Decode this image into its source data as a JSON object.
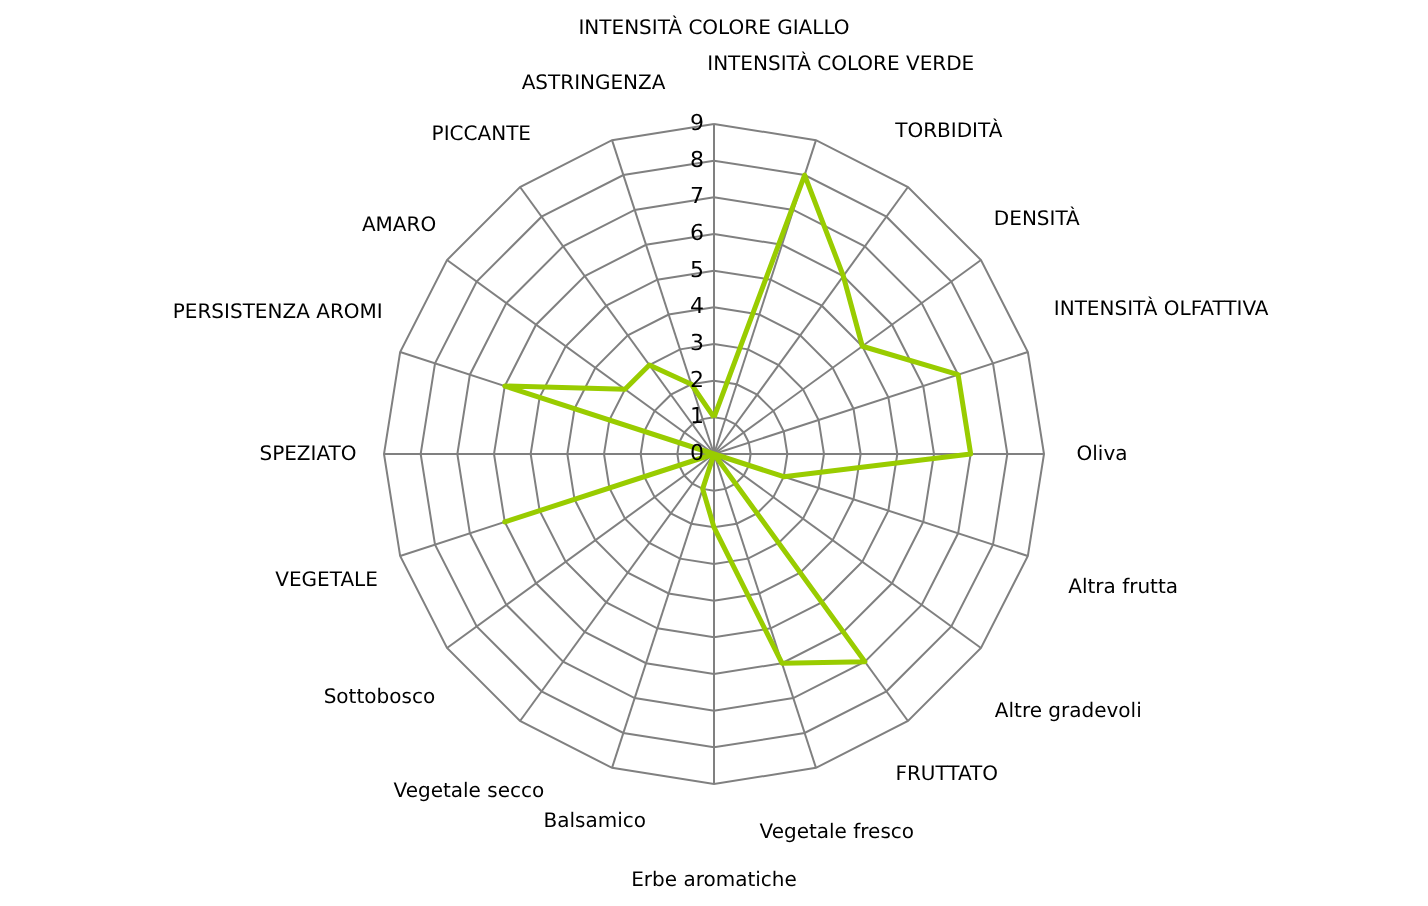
{
  "chart_data": {
    "type": "radar",
    "categories": [
      "INTENSITÀ COLORE GIALLO",
      "INTENSITÀ COLORE VERDE",
      "TORBIDITÀ",
      "DENSITÀ",
      "INTENSITÀ OLFATTIVA",
      "Oliva",
      "Altra frutta",
      "Altre gradevoli",
      "FRUTTATO",
      "Vegetale fresco",
      "Erbe aromatiche",
      "Balsamico",
      "Vegetale secco",
      "Sottobosco",
      "VEGETALE",
      "SPEZIATO",
      "PERSISTENZA AROMI",
      "AMARO",
      "PICCANTE",
      "ASTRINGENZA"
    ],
    "series": [
      {
        "color": "#99cc00",
        "values": [
          1,
          8,
          6,
          5,
          7,
          7,
          2,
          0,
          7,
          6,
          2,
          1,
          0,
          0,
          6,
          0,
          6,
          3,
          3,
          2
        ]
      }
    ],
    "ylim": [
      0,
      9
    ],
    "yticks": [
      0,
      1,
      2,
      3,
      4,
      5,
      6,
      7,
      8,
      9
    ],
    "grid": true
  }
}
